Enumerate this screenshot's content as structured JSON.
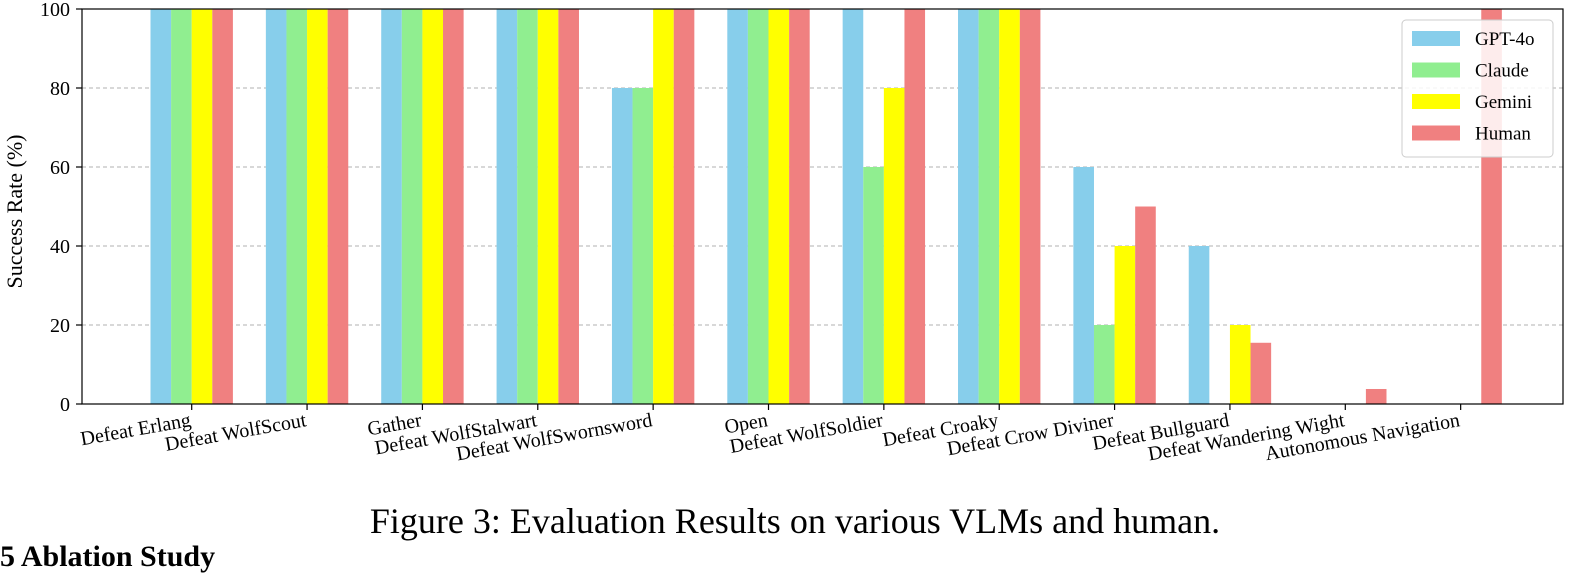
{
  "chart_data": {
    "type": "bar",
    "title": "",
    "xlabel": "",
    "ylabel": "Success Rate (%)",
    "ylim": [
      0,
      100
    ],
    "yticks": [
      0,
      20,
      40,
      60,
      80,
      100
    ],
    "grid": "y-dashed",
    "legend_position": "top-right",
    "categories": [
      "Defeat Erlang",
      "Defeat WolfScout",
      "Gather",
      "Defeat WolfStalwart",
      "Defeat WolfSwornsword",
      "Open",
      "Defeat WolfSoldier",
      "Defeat Croaky",
      "Defeat Crow Diviner",
      "Defeat Bullguard",
      "Defeat Wandering Wight",
      "Autonomous Navigation"
    ],
    "series": [
      {
        "name": "GPT-4o",
        "color": "#87ceeb",
        "values": [
          100,
          100,
          100,
          100,
          80,
          100,
          100,
          100,
          60,
          40,
          0,
          0
        ]
      },
      {
        "name": "Claude",
        "color": "#90ee90",
        "values": [
          100,
          100,
          100,
          100,
          80,
          100,
          60,
          100,
          20,
          0,
          0,
          0
        ]
      },
      {
        "name": "Gemini",
        "color": "#ffff00",
        "values": [
          100,
          100,
          100,
          100,
          100,
          100,
          80,
          100,
          40,
          20,
          0,
          0
        ]
      },
      {
        "name": "Human",
        "color": "#f08080",
        "values": [
          100,
          100,
          100,
          100,
          100,
          100,
          100,
          100,
          50,
          15.5,
          3.8,
          100
        ]
      }
    ]
  },
  "caption": "Figure 3: Evaluation Results on various VLMs and human.",
  "next_heading": "5 Ablation Study"
}
